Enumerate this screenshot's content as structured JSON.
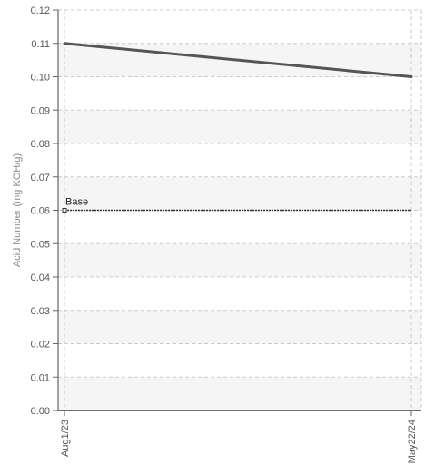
{
  "chart_data": {
    "type": "line",
    "title": "",
    "xlabel": "",
    "ylabel": "Acid Number (mg KOH/g)",
    "x": [
      "Aug1/23",
      "May22/24"
    ],
    "series": [
      {
        "values": [
          0.11,
          0.1
        ],
        "color": "#555555"
      }
    ],
    "ylim": [
      0,
      0.12
    ],
    "yticks": [
      "0.00",
      "0.01",
      "0.02",
      "0.03",
      "0.04",
      "0.05",
      "0.06",
      "0.07",
      "0.08",
      "0.09",
      "0.10",
      "0.11",
      "0.12"
    ],
    "reference_line": {
      "label": "Base",
      "value": 0.06,
      "style": "dotted",
      "color": "#333333"
    },
    "grid": true,
    "band_color": "#f5f5f5"
  }
}
